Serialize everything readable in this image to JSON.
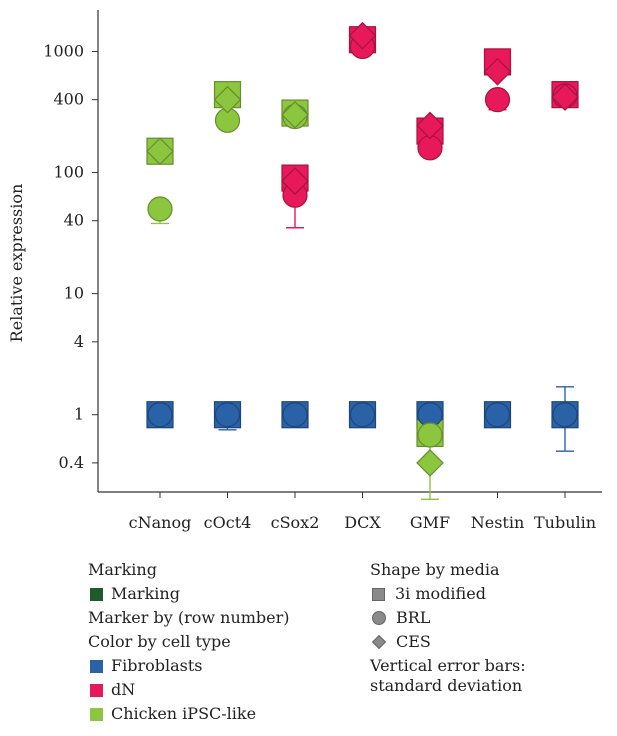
{
  "chart_data": {
    "type": "scatter",
    "title": "",
    "xlabel": "",
    "ylabel": "Relative expression",
    "y_scale": "log",
    "ylim": [
      0.23,
      2200
    ],
    "y_ticks": [
      1000,
      400,
      100,
      40,
      10,
      4,
      1,
      0.4
    ],
    "y_tick_labels": [
      "1000",
      "400",
      "100",
      "40",
      "10",
      "4",
      "1",
      "0.4"
    ],
    "categories": [
      "cNanog",
      "cOct4",
      "cSox2",
      "DCX",
      "GMF",
      "Nestin",
      "Tubulin"
    ],
    "grid": false,
    "colors": {
      "Fibroblasts": "#2a62a8",
      "dN": "#e8195a",
      "Chicken iPSC-like": "#8cc63e"
    },
    "series": [
      {
        "cell_type": "Fibroblasts",
        "media": "3i modified",
        "shape": "square",
        "values": [
          1,
          1,
          1,
          1,
          1,
          1,
          1
        ],
        "err_high": [
          null,
          1.1,
          null,
          null,
          1.25,
          null,
          1.7
        ],
        "err_low": [
          null,
          0.75,
          null,
          null,
          0.75,
          null,
          0.5
        ]
      },
      {
        "cell_type": "Fibroblasts",
        "media": "BRL",
        "shape": "circle",
        "values": [
          1,
          1,
          1,
          1,
          1,
          1,
          1
        ]
      },
      {
        "cell_type": "dN",
        "media": "3i modified",
        "shape": "square",
        "values": [
          null,
          null,
          90,
          1250,
          220,
          820,
          440
        ],
        "err_high": [
          null,
          null,
          115,
          null,
          null,
          null,
          null
        ],
        "err_low": [
          null,
          null,
          null,
          null,
          null,
          null,
          null
        ]
      },
      {
        "cell_type": "dN",
        "media": "BRL",
        "shape": "circle",
        "values": [
          null,
          null,
          65,
          1100,
          160,
          400,
          430
        ],
        "err_high": [
          null,
          null,
          null,
          null,
          null,
          null,
          null
        ],
        "err_low": [
          null,
          null,
          35,
          null,
          145,
          330,
          null
        ]
      },
      {
        "cell_type": "dN",
        "media": "CES",
        "shape": "diamond",
        "values": [
          null,
          null,
          85,
          1350,
          245,
          680,
          420
        ]
      },
      {
        "cell_type": "Chicken iPSC-like",
        "media": "3i modified",
        "shape": "square",
        "values": [
          150,
          440,
          310,
          null,
          0.7,
          null,
          null
        ]
      },
      {
        "cell_type": "Chicken iPSC-like",
        "media": "BRL",
        "shape": "circle",
        "values": [
          50,
          270,
          290,
          null,
          0.68,
          null,
          null
        ],
        "err_high": [
          59,
          null,
          null,
          null,
          null,
          null,
          null
        ],
        "err_low": [
          38,
          null,
          null,
          null,
          0.55,
          null,
          null
        ]
      },
      {
        "cell_type": "Chicken iPSC-like",
        "media": "CES",
        "shape": "diamond",
        "values": [
          150,
          400,
          300,
          null,
          0.4,
          null,
          null
        ],
        "err_high": [
          null,
          null,
          null,
          null,
          0.85,
          null,
          null
        ],
        "err_low": [
          null,
          null,
          null,
          null,
          0.2,
          null,
          null
        ]
      }
    ]
  },
  "legend": {
    "marking_title": "Marking",
    "marking_item": "Marking",
    "marking_color": "#1e5a2c",
    "marker_by": "Marker by (row number)",
    "color_title": "Color by cell type",
    "color_items": [
      {
        "label": "Fibroblasts",
        "color": "#2a62a8"
      },
      {
        "label": "dN",
        "color": "#e8195a"
      },
      {
        "label": "Chicken iPSC-like",
        "color": "#8cc63e"
      }
    ],
    "shape_title": "Shape by media",
    "shape_items": [
      {
        "label": "3i modified",
        "shape": "square"
      },
      {
        "label": "BRL",
        "shape": "circle"
      },
      {
        "label": "CES",
        "shape": "diamond"
      }
    ],
    "error_note_line1": "Vertical error bars:",
    "error_note_line2": "standard deviation"
  }
}
